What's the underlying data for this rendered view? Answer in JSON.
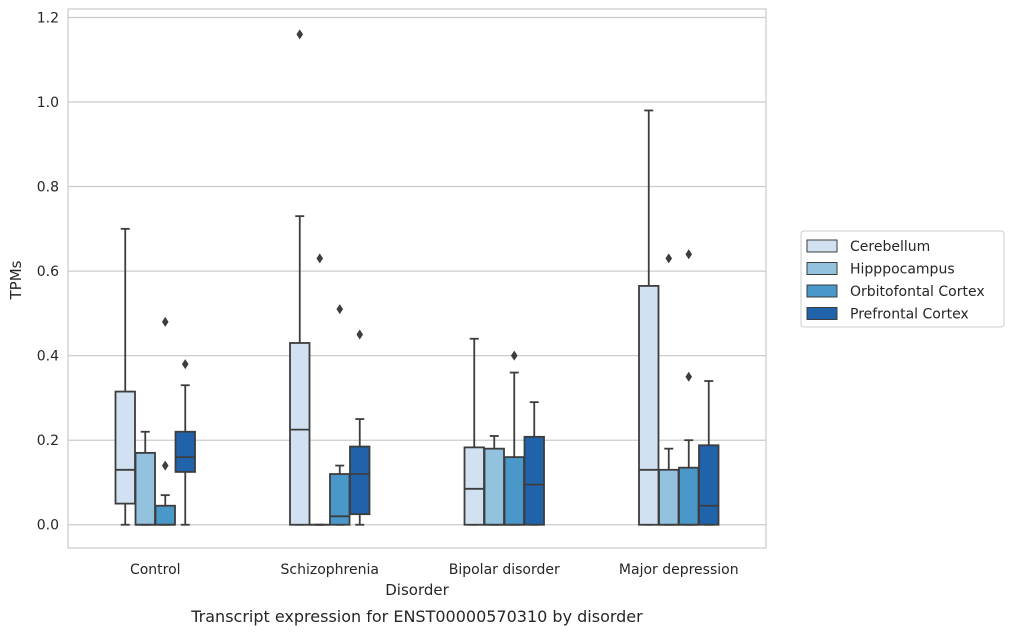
{
  "chart_data": {
    "type": "box",
    "title": "",
    "caption": "Transcript expression for ENST00000570310 by disorder",
    "xlabel": "Disorder",
    "ylabel": "TPMs",
    "ylim": [
      -0.055,
      1.22
    ],
    "yticks": [
      "0.0",
      "0.2",
      "0.4",
      "0.6",
      "0.8",
      "1.0",
      "1.2"
    ],
    "grid": true,
    "legend_position": "center-right",
    "categories": [
      "Control",
      "Schizophrenia",
      "Bipolar disorder",
      "Major depression"
    ],
    "series": [
      {
        "name": "Cerebellum",
        "color": "#d1e1f1",
        "boxes": [
          {
            "whislo": 0.0,
            "q1": 0.05,
            "med": 0.13,
            "q3": 0.315,
            "whishi": 0.7,
            "fliers": []
          },
          {
            "whislo": 0.0,
            "q1": 0.0,
            "med": 0.225,
            "q3": 0.43,
            "whishi": 0.73,
            "fliers": [
              1.16
            ]
          },
          {
            "whislo": 0.0,
            "q1": 0.0,
            "med": 0.085,
            "q3": 0.183,
            "whishi": 0.44,
            "fliers": []
          },
          {
            "whislo": 0.0,
            "q1": 0.0,
            "med": 0.13,
            "q3": 0.565,
            "whishi": 0.98,
            "fliers": []
          }
        ]
      },
      {
        "name": "Hipppocampus",
        "color": "#93c2de",
        "boxes": [
          {
            "whislo": 0.0,
            "q1": 0.0,
            "med": 0.0,
            "q3": 0.17,
            "whishi": 0.22,
            "fliers": []
          },
          {
            "whislo": 0.0,
            "q1": 0.0,
            "med": 0.0,
            "q3": 0.0,
            "whishi": 0.0,
            "fliers": [
              0.63
            ]
          },
          {
            "whislo": 0.0,
            "q1": 0.0,
            "med": 0.0,
            "q3": 0.18,
            "whishi": 0.21,
            "fliers": []
          },
          {
            "whislo": 0.0,
            "q1": 0.0,
            "med": 0.0,
            "q3": 0.13,
            "whishi": 0.18,
            "fliers": [
              0.63
            ]
          }
        ]
      },
      {
        "name": "Orbitofontal Cortex",
        "color": "#4a98c9",
        "boxes": [
          {
            "whislo": 0.0,
            "q1": 0.0,
            "med": 0.0,
            "q3": 0.045,
            "whishi": 0.07,
            "fliers": [
              0.14,
              0.48
            ]
          },
          {
            "whislo": 0.0,
            "q1": 0.0,
            "med": 0.02,
            "q3": 0.12,
            "whishi": 0.14,
            "fliers": [
              0.51
            ]
          },
          {
            "whislo": 0.0,
            "q1": 0.0,
            "med": 0.0,
            "q3": 0.16,
            "whishi": 0.36,
            "fliers": [
              0.4
            ]
          },
          {
            "whislo": 0.0,
            "q1": 0.0,
            "med": 0.0,
            "q3": 0.135,
            "whishi": 0.2,
            "fliers": [
              0.35,
              0.64
            ]
          }
        ]
      },
      {
        "name": "Prefrontal Cortex",
        "color": "#2063ab",
        "boxes": [
          {
            "whislo": 0.0,
            "q1": 0.125,
            "med": 0.16,
            "q3": 0.22,
            "whishi": 0.33,
            "fliers": [
              0.38
            ]
          },
          {
            "whislo": 0.0,
            "q1": 0.025,
            "med": 0.12,
            "q3": 0.185,
            "whishi": 0.25,
            "fliers": [
              0.45
            ]
          },
          {
            "whislo": 0.0,
            "q1": 0.0,
            "med": 0.095,
            "q3": 0.208,
            "whishi": 0.29,
            "fliers": []
          },
          {
            "whislo": 0.0,
            "q1": 0.0,
            "med": 0.045,
            "q3": 0.188,
            "whishi": 0.34,
            "fliers": []
          }
        ]
      }
    ]
  }
}
